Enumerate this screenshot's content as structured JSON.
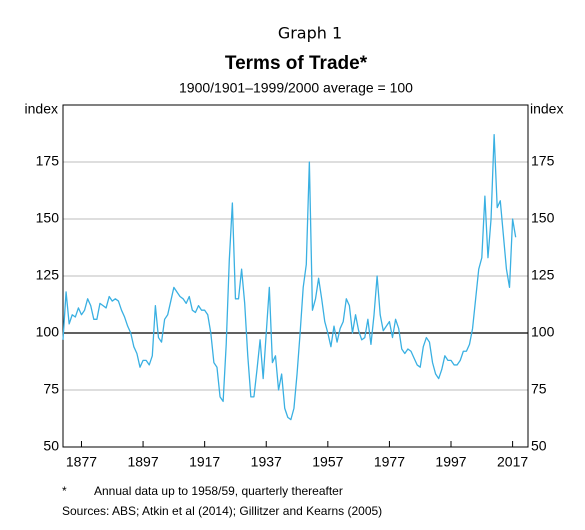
{
  "chart_data": {
    "type": "line",
    "supertitle": "Graph 1",
    "title": "Terms of Trade*",
    "subtitle": "1900/1901–1999/2000 average = 100",
    "y_label": "index",
    "footnote": "*",
    "footnote_text": "Annual data up to 1958/59, quarterly thereafter",
    "sources": "Sources:   ABS; Atkin et al (2014); Gillitzer and Kearns (2005)",
    "color": "#3ab0e2",
    "reference_line": 100,
    "x": [
      1871,
      1872,
      1873,
      1874,
      1875,
      1876,
      1877,
      1878,
      1879,
      1880,
      1881,
      1882,
      1883,
      1884,
      1885,
      1886,
      1887,
      1888,
      1889,
      1890,
      1891,
      1892,
      1893,
      1894,
      1895,
      1896,
      1897,
      1898,
      1899,
      1900,
      1901,
      1902,
      1903,
      1904,
      1905,
      1906,
      1907,
      1908,
      1909,
      1910,
      1911,
      1912,
      1913,
      1914,
      1915,
      1916,
      1917,
      1918,
      1919,
      1920,
      1921,
      1922,
      1923,
      1924,
      1925,
      1926,
      1927,
      1928,
      1929,
      1930,
      1931,
      1932,
      1933,
      1934,
      1935,
      1936,
      1937,
      1938,
      1939,
      1940,
      1941,
      1942,
      1943,
      1944,
      1945,
      1946,
      1947,
      1948,
      1949,
      1950,
      1951,
      1952,
      1953,
      1954,
      1955,
      1956,
      1957,
      1958,
      1959,
      1960,
      1961,
      1962,
      1963,
      1964,
      1965,
      1966,
      1967,
      1968,
      1969,
      1970,
      1971,
      1972,
      1973,
      1974,
      1975,
      1976,
      1977,
      1978,
      1979,
      1980,
      1981,
      1982,
      1983,
      1984,
      1985,
      1986,
      1987,
      1988,
      1989,
      1990,
      1991,
      1992,
      1993,
      1994,
      1995,
      1996,
      1997,
      1998,
      1999,
      2000,
      2001,
      2002,
      2003,
      2004,
      2005,
      2006,
      2007,
      2008,
      2009,
      2010,
      2011,
      2012,
      2013,
      2014,
      2015,
      2016,
      2017,
      2018
    ],
    "values": [
      97,
      118,
      104,
      108,
      107,
      111,
      108,
      110,
      115,
      112,
      106,
      106,
      113,
      112,
      111,
      116,
      114,
      115,
      114,
      110,
      107,
      103,
      100,
      94,
      91,
      85,
      88,
      88,
      86,
      90,
      112,
      98,
      96,
      106,
      108,
      114,
      120,
      118,
      116,
      115,
      113,
      116,
      110,
      109,
      112,
      110,
      110,
      108,
      100,
      87,
      85,
      72,
      70,
      95,
      132,
      157,
      115,
      115,
      128,
      113,
      90,
      72,
      72,
      84,
      97,
      80,
      100,
      120,
      87,
      90,
      75,
      82,
      67,
      63,
      62,
      67,
      82,
      100,
      120,
      130,
      175,
      110,
      115,
      124,
      115,
      105,
      100,
      94,
      103,
      96,
      102,
      105,
      115,
      112,
      100,
      108,
      101,
      97,
      98,
      106,
      95,
      108,
      125,
      108,
      101,
      103,
      105,
      98,
      106,
      102,
      93,
      91,
      93,
      92,
      89,
      86,
      85,
      94,
      98,
      96,
      87,
      82,
      80,
      84,
      90,
      88,
      88,
      86,
      86,
      88,
      92,
      92,
      95,
      102,
      115,
      128,
      133,
      160,
      133,
      150,
      187,
      155,
      158,
      143,
      128,
      120,
      150,
      142
    ],
    "xlim": [
      1871,
      2022
    ],
    "xticks": [
      1877,
      1897,
      1917,
      1937,
      1957,
      1977,
      1997,
      2017
    ],
    "ylim": [
      50,
      200
    ],
    "yticks": [
      50,
      75,
      100,
      125,
      150,
      175
    ],
    "grid": true
  }
}
